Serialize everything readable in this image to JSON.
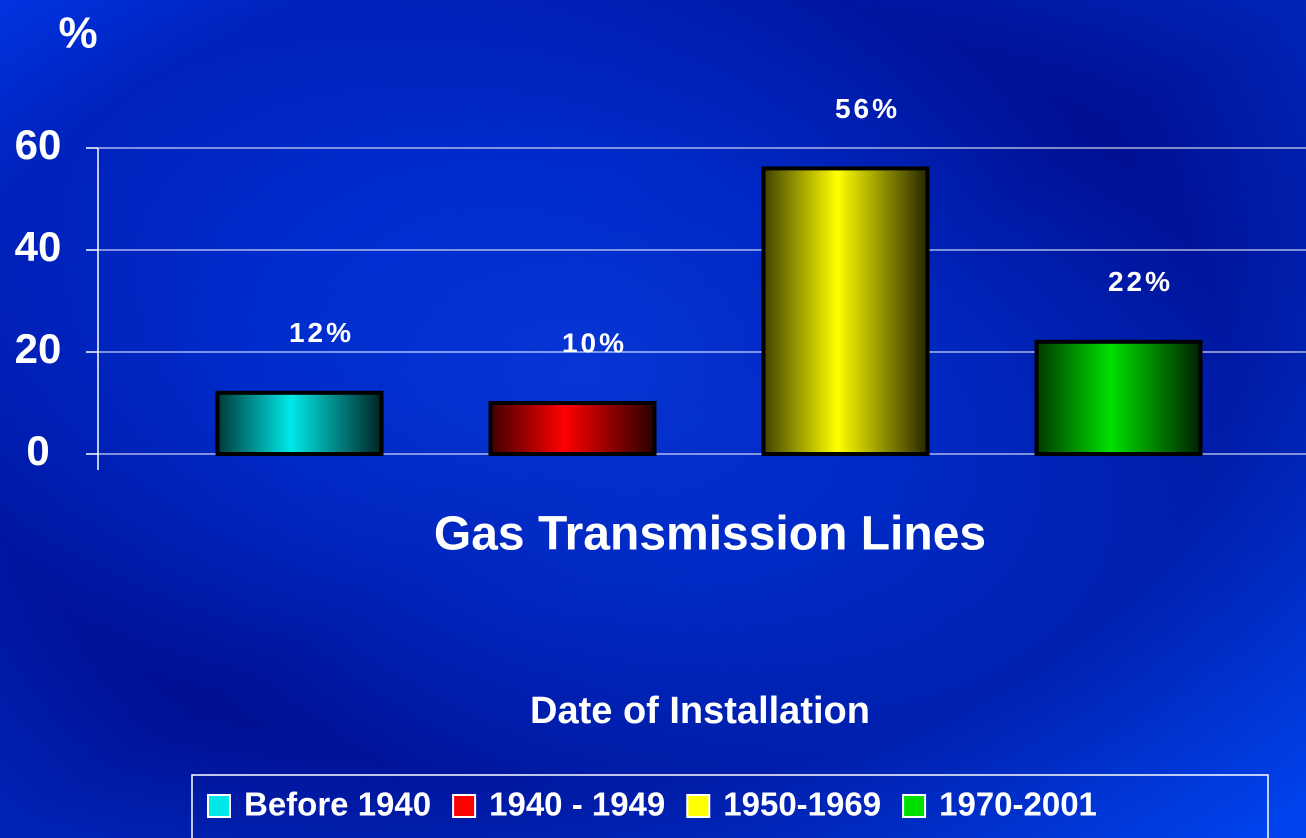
{
  "chart_data": {
    "type": "bar",
    "ylabel": "%",
    "xlabel": "Gas Transmission Lines",
    "legend_title": "Date of Installation",
    "series": [
      {
        "name": "Before 1940",
        "color": "#00e8e8",
        "values": [
          12
        ],
        "value_labels": [
          "12%"
        ]
      },
      {
        "name": "1940 - 1949",
        "color": "#ff0000",
        "values": [
          10
        ],
        "value_labels": [
          "10%"
        ]
      },
      {
        "name": "1950-1969",
        "color": "#ffff00",
        "values": [
          56
        ],
        "value_labels": [
          "56%"
        ]
      },
      {
        "name": "1970-2001",
        "color": "#00e000",
        "values": [
          22
        ],
        "value_labels": [
          "22%"
        ]
      }
    ],
    "ylim": [
      0,
      60
    ],
    "yticks": [
      0,
      20,
      40,
      60
    ],
    "grid": true,
    "legend": "bottom"
  }
}
